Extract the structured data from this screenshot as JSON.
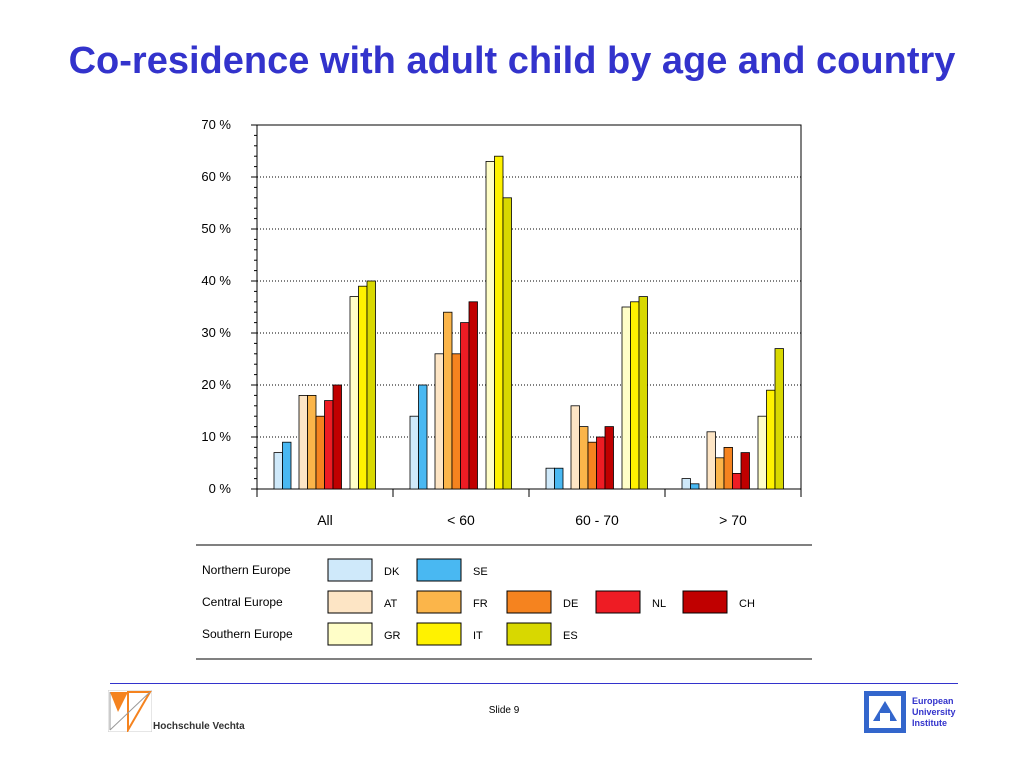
{
  "slide": {
    "title": "Co-residence with adult child by age and country",
    "slide_label": "Slide 9",
    "left_logo_text": "Hochschule Vechta",
    "right_logo_lines": [
      "European",
      "University",
      "Institute"
    ]
  },
  "chart_data": {
    "type": "bar",
    "title": "",
    "xlabel": "",
    "ylabel": "",
    "ylim": [
      0,
      70
    ],
    "yticks": [
      0,
      10,
      20,
      30,
      40,
      50,
      60,
      70
    ],
    "ytick_labels": [
      "0 %",
      "10 %",
      "20 %",
      "30 %",
      "40 %",
      "50 %",
      "60 %",
      "70 %"
    ],
    "grid": "dotted horizontal at each 10 %",
    "categories": [
      "All",
      "< 60",
      "60 - 70",
      "> 70"
    ],
    "groups": [
      {
        "name": "Northern Europe",
        "series": [
          "DK",
          "SE"
        ]
      },
      {
        "name": "Central Europe",
        "series": [
          "AT",
          "FR",
          "DE",
          "NL",
          "CH"
        ]
      },
      {
        "name": "Southern Europe",
        "series": [
          "GR",
          "IT",
          "ES"
        ]
      }
    ],
    "series": [
      {
        "name": "DK",
        "color": "#cfe9fa",
        "values": [
          7,
          14,
          4,
          2
        ]
      },
      {
        "name": "SE",
        "color": "#49b8f2",
        "values": [
          9,
          20,
          4,
          1
        ]
      },
      {
        "name": "AT",
        "color": "#fde5c5",
        "values": [
          18,
          26,
          16,
          11
        ]
      },
      {
        "name": "FR",
        "color": "#fbb54a",
        "values": [
          18,
          34,
          12,
          6
        ]
      },
      {
        "name": "DE",
        "color": "#f5831f",
        "values": [
          14,
          26,
          9,
          8
        ]
      },
      {
        "name": "NL",
        "color": "#ee1c24",
        "values": [
          17,
          32,
          10,
          3
        ]
      },
      {
        "name": "CH",
        "color": "#c00000",
        "values": [
          20,
          36,
          12,
          7
        ]
      },
      {
        "name": "GR",
        "color": "#fffec8",
        "values": [
          37,
          63,
          35,
          14
        ]
      },
      {
        "name": "IT",
        "color": "#fff200",
        "values": [
          39,
          64,
          36,
          19
        ]
      },
      {
        "name": "ES",
        "color": "#d8d800",
        "values": [
          40,
          56,
          37,
          27
        ]
      }
    ],
    "legend_position": "below chart"
  }
}
